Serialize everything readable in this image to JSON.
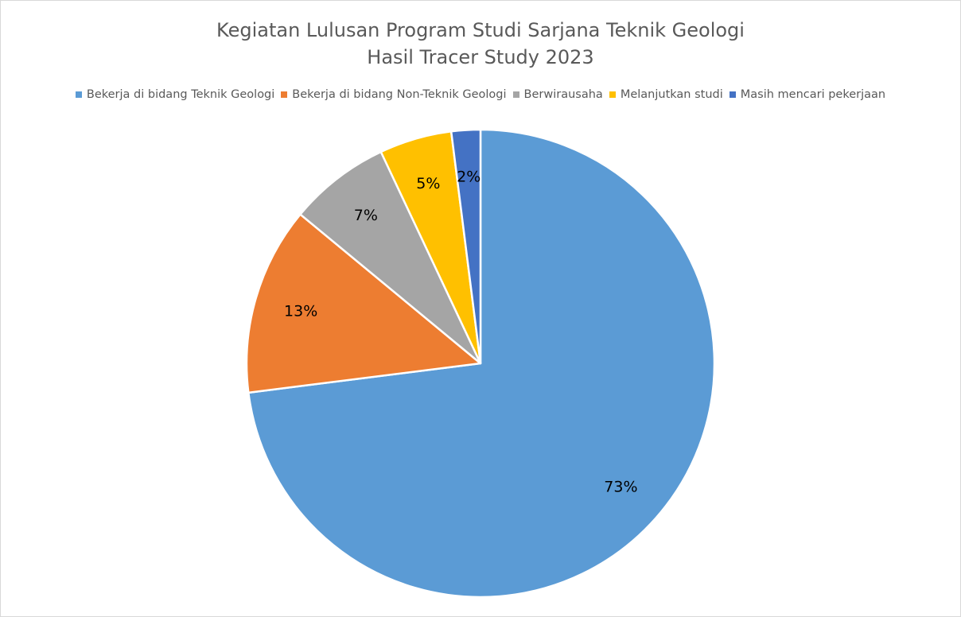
{
  "chart_data": {
    "type": "pie",
    "title_line1": "Kegiatan Lulusan Program Studi Sarjana Teknik Geologi",
    "title_line2": "Hasil Tracer Study 2023",
    "legend_position": "top",
    "categories": [
      "Bekerja di bidang Teknik Geologi",
      "Bekerja di bidang Non-Teknik Geologi",
      "Berwirausaha",
      "Melanjutkan studi",
      "Masih mencari pekerjaan"
    ],
    "values": [
      73,
      13,
      7,
      5,
      2
    ],
    "labels": [
      "73%",
      "13%",
      "7%",
      "5%",
      "2%"
    ],
    "colors": [
      "#5b9bd5",
      "#ed7d31",
      "#a5a5a5",
      "#ffc000",
      "#4472c4"
    ]
  }
}
